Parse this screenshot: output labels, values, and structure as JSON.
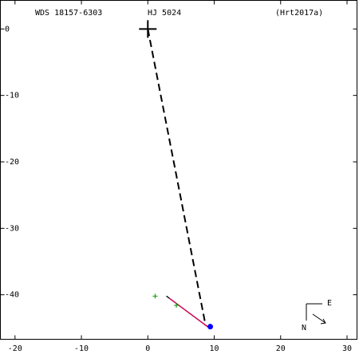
{
  "chart_data": {
    "type": "scatter",
    "labels": [
      "WDS 18157-6303",
      "HJ 5024",
      "(Hrt2017a)"
    ],
    "compass": {
      "east": "E",
      "north": "N"
    },
    "xlim": [
      -22.2,
      31.5
    ],
    "ylim": [
      -46.7,
      4.3
    ],
    "xticks": [
      -20,
      -10,
      0,
      10,
      20,
      30
    ],
    "yticks": [
      0,
      -10,
      -20,
      -30,
      -40
    ],
    "series": [
      {
        "color": "#000000",
        "style": "dashed",
        "x": [
          0,
          8.7
        ],
        "y": [
          0,
          -44.6
        ]
      },
      {
        "color": "#000000",
        "style": "solid",
        "x": [
          2.8,
          9.0
        ],
        "y": [
          -40.2,
          -44.8
        ]
      },
      {
        "color": "#e0005a",
        "style": "solid",
        "x": [
          3.2,
          9.0
        ],
        "y": [
          -40.5,
          -44.8
        ]
      },
      {
        "color": "#009900",
        "marker": "plus",
        "x": [
          1.1,
          4.3
        ],
        "y": [
          -40.2,
          -41.6
        ]
      },
      {
        "color": "#000000",
        "marker": "big-plus",
        "x": [
          0
        ],
        "y": [
          0
        ]
      },
      {
        "color": "#0000ff",
        "marker": "dot",
        "x": [
          9.4
        ],
        "y": [
          -44.8
        ]
      }
    ]
  }
}
